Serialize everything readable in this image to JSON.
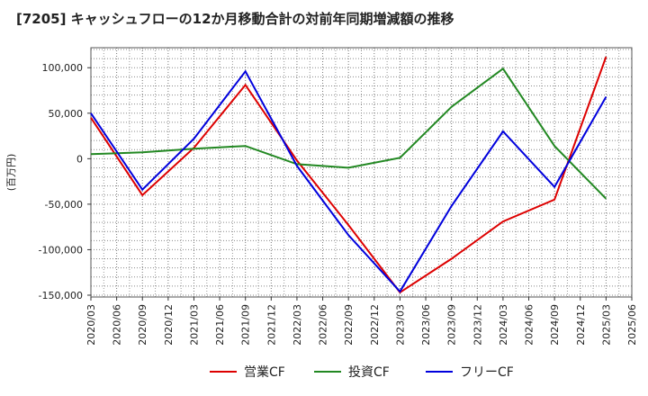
{
  "chart_data": {
    "type": "line",
    "title": "[7205]  キャッシュフローの12か月移動合計の対前年同期増減額の推移",
    "ylabel": "(百万円)",
    "xlabel": "",
    "ylim": [
      -152000,
      122000
    ],
    "yticks": [
      100000,
      50000,
      0,
      -50000,
      -100000,
      -150000
    ],
    "ytick_labels": [
      "100,000",
      "50,000",
      "0",
      "-50,000",
      "-100,000",
      "-150,000"
    ],
    "categories": [
      "2020/03",
      "2020/06",
      "2020/09",
      "2020/12",
      "2021/03",
      "2021/06",
      "2021/09",
      "2021/12",
      "2022/03",
      "2022/06",
      "2022/09",
      "2022/12",
      "2023/03",
      "2023/06",
      "2023/09",
      "2023/12",
      "2024/03",
      "2024/06",
      "2024/09",
      "2024/12",
      "2025/03",
      "2025/06"
    ],
    "series": [
      {
        "name": "営業CF",
        "color": "#dd0000",
        "values": [
          45000,
          null,
          -40000,
          null,
          12000,
          null,
          81000,
          null,
          -2000,
          null,
          -73000,
          null,
          -147000,
          null,
          -110000,
          null,
          -69000,
          null,
          -45000,
          null,
          112000,
          null
        ]
      },
      {
        "name": "投資CF",
        "color": "#228822",
        "values": [
          5000,
          null,
          7000,
          null,
          11000,
          null,
          14000,
          null,
          -6000,
          null,
          -10000,
          null,
          1000,
          null,
          57000,
          null,
          99000,
          null,
          14000,
          null,
          -44000,
          null
        ]
      },
      {
        "name": "フリーCF",
        "color": "#0000dd",
        "values": [
          50000,
          null,
          -34000,
          null,
          22000,
          null,
          96000,
          null,
          -8000,
          null,
          -84000,
          null,
          -146000,
          null,
          -52000,
          null,
          30000,
          null,
          -31000,
          null,
          68000,
          null
        ]
      }
    ],
    "grid": true,
    "legend": "bottom"
  }
}
